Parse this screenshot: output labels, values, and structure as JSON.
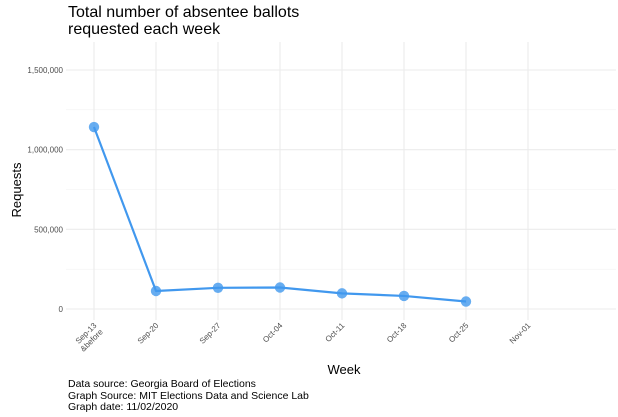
{
  "chart_data": {
    "type": "line",
    "title": "Total number of absentee ballots\nrequested each week",
    "xlabel": "Week",
    "ylabel": "Requests",
    "categories": [
      [
        "Sep-13",
        "&before"
      ],
      [
        "Sep-20"
      ],
      [
        "Sep-27"
      ],
      [
        "Oct-04"
      ],
      [
        "Oct-11"
      ],
      [
        "Oct-18"
      ],
      [
        "Oct-25"
      ],
      [
        "Nov-01"
      ]
    ],
    "series": [
      {
        "values": [
          1142000,
          113000,
          133000,
          135000,
          98000,
          82000,
          47000,
          null
        ],
        "color": "#4198EE"
      }
    ],
    "ylim": [
      0,
      1600000
    ],
    "yticks": [
      0,
      500000,
      1000000,
      1500000
    ],
    "ytick_labels": [
      "0",
      "500,000",
      "1,000,000",
      "1,500,000"
    ],
    "grid": true,
    "legend": "none"
  },
  "caption": [
    "Data source: Georgia Board of Elections",
    "Graph Source: MIT Elections Data and Science Lab",
    "Graph date: 11/02/2020"
  ]
}
